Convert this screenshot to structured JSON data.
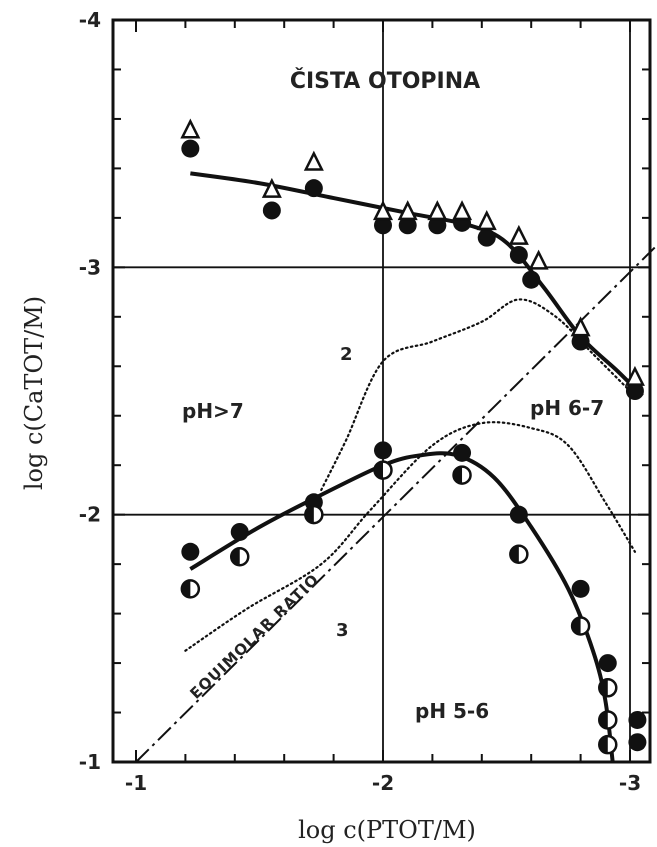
{
  "chart_data": {
    "type": "scatter",
    "title": "ČISTA OTOPINA",
    "xlabel": "log c(PTOT/M)",
    "ylabel": "log c(CaTOT/M)",
    "xlim": [
      -1,
      -3.1
    ],
    "ylim": [
      -1,
      -4
    ],
    "x_ticks": [
      "-1",
      "-2",
      "-3"
    ],
    "y_ticks": [
      "-1",
      "-2",
      "-3",
      "-4"
    ],
    "grid": true,
    "annotations": {
      "region_ph_gt7": "pH>7",
      "region_ph_6_7": "pH 6-7",
      "region_ph_5_6": "pH 5-6",
      "curve_2": "2",
      "curve_3": "3",
      "equimolar": "EQUIMOLAR RATIO"
    },
    "series": [
      {
        "marker": "filled-circle",
        "points": [
          [
            -1.22,
            -3.48
          ],
          [
            -1.55,
            -3.23
          ],
          [
            -1.72,
            -3.32
          ],
          [
            -2.0,
            -3.17
          ],
          [
            -2.1,
            -3.17
          ],
          [
            -2.22,
            -3.17
          ],
          [
            -2.32,
            -3.18
          ],
          [
            -2.42,
            -3.12
          ],
          [
            -2.55,
            -3.05
          ],
          [
            -2.6,
            -2.95
          ],
          [
            -2.8,
            -2.7
          ],
          [
            -3.02,
            -2.5
          ],
          [
            -1.22,
            -1.85
          ],
          [
            -1.42,
            -1.93
          ],
          [
            -1.72,
            -2.05
          ],
          [
            -2.0,
            -2.26
          ],
          [
            -2.32,
            -2.25
          ],
          [
            -2.55,
            -2.0
          ],
          [
            -2.8,
            -1.7
          ],
          [
            -2.91,
            -1.4
          ],
          [
            -2.91,
            -1.17
          ],
          [
            -3.03,
            -1.17
          ],
          [
            -3.03,
            -1.08
          ]
        ]
      },
      {
        "marker": "open-triangle",
        "points": [
          [
            -1.22,
            -3.55
          ],
          [
            -1.55,
            -3.31
          ],
          [
            -1.72,
            -3.42
          ],
          [
            -2.0,
            -3.22
          ],
          [
            -2.1,
            -3.22
          ],
          [
            -2.22,
            -3.22
          ],
          [
            -2.32,
            -3.22
          ],
          [
            -2.42,
            -3.18
          ],
          [
            -2.55,
            -3.12
          ],
          [
            -2.63,
            -3.02
          ],
          [
            -2.8,
            -2.75
          ],
          [
            -3.02,
            -2.55
          ]
        ]
      },
      {
        "marker": "half-open-circle",
        "points": [
          [
            -1.22,
            -1.7
          ],
          [
            -1.42,
            -1.83
          ],
          [
            -1.72,
            -2.0
          ],
          [
            -2.0,
            -2.18
          ],
          [
            -2.32,
            -2.16
          ],
          [
            -2.55,
            -1.84
          ],
          [
            -2.8,
            -1.55
          ],
          [
            -2.91,
            -1.3
          ],
          [
            -2.91,
            -1.17
          ],
          [
            -2.91,
            -1.07
          ]
        ]
      },
      {
        "curve": "upper-fit",
        "style": "solid",
        "points": [
          [
            -1.22,
            -3.38
          ],
          [
            -1.5,
            -3.34
          ],
          [
            -1.8,
            -3.28
          ],
          [
            -2.1,
            -3.22
          ],
          [
            -2.35,
            -3.17
          ],
          [
            -2.5,
            -3.1
          ],
          [
            -2.65,
            -2.92
          ],
          [
            -2.8,
            -2.72
          ],
          [
            -2.95,
            -2.58
          ],
          [
            -3.05,
            -2.48
          ]
        ]
      },
      {
        "curve": "lower-fit",
        "style": "solid",
        "points": [
          [
            -1.22,
            -1.78
          ],
          [
            -1.5,
            -1.95
          ],
          [
            -1.75,
            -2.08
          ],
          [
            -2.0,
            -2.2
          ],
          [
            -2.15,
            -2.24
          ],
          [
            -2.3,
            -2.24
          ],
          [
            -2.45,
            -2.15
          ],
          [
            -2.6,
            -1.95
          ],
          [
            -2.75,
            -1.7
          ],
          [
            -2.85,
            -1.45
          ],
          [
            -2.9,
            -1.25
          ],
          [
            -2.93,
            -1.0
          ]
        ]
      },
      {
        "curve": "2",
        "style": "dotted",
        "points": [
          [
            -1.2,
            -1.45
          ],
          [
            -1.45,
            -1.62
          ],
          [
            -1.75,
            -1.8
          ],
          [
            -1.95,
            -2.02
          ],
          [
            -2.2,
            -2.28
          ],
          [
            -2.4,
            -2.37
          ],
          [
            -2.6,
            -2.35
          ],
          [
            -2.75,
            -2.28
          ],
          [
            -2.9,
            -2.05
          ],
          [
            -3.02,
            -1.85
          ]
        ]
      },
      {
        "curve": "upper-dotted",
        "style": "dotted",
        "points": [
          [
            -1.75,
            -2.1
          ],
          [
            -1.85,
            -2.3
          ],
          [
            -2.0,
            -2.62
          ],
          [
            -2.2,
            -2.7
          ],
          [
            -2.4,
            -2.78
          ],
          [
            -2.55,
            -2.87
          ],
          [
            -2.7,
            -2.8
          ],
          [
            -2.85,
            -2.65
          ],
          [
            -3.0,
            -2.5
          ]
        ]
      },
      {
        "curve": "3",
        "style": "dash-dot",
        "points": [
          [
            -1.0,
            -1.0
          ],
          [
            -3.1,
            -3.08
          ]
        ]
      }
    ]
  }
}
